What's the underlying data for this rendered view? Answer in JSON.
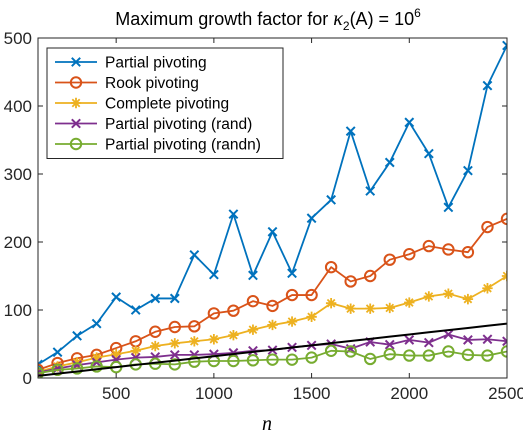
{
  "chart_data": {
    "type": "line",
    "title_prefix": "Maximum growth factor for ",
    "title_kappa": "κ",
    "title_sub": "2",
    "title_mid": "(A) = 10",
    "title_sup": "6",
    "xlabel": "n",
    "ylabel": "",
    "xlim": [
      100,
      2500
    ],
    "ylim": [
      0,
      500
    ],
    "xticks": [
      500,
      1000,
      1500,
      2000,
      2500
    ],
    "yticks": [
      0,
      100,
      200,
      300,
      400,
      500
    ],
    "grid": false,
    "legend_position": "top-left",
    "x": [
      100,
      200,
      300,
      400,
      500,
      600,
      700,
      800,
      900,
      1000,
      1100,
      1200,
      1300,
      1400,
      1500,
      1600,
      1700,
      1800,
      1900,
      2000,
      2100,
      2200,
      2300,
      2400,
      2500
    ],
    "series": [
      {
        "name": "Partial pivoting",
        "color": "#0072BD",
        "marker": "x",
        "values": [
          20,
          38,
          62,
          80,
          119,
          100,
          117,
          117,
          181,
          152,
          241,
          151,
          215,
          154,
          235,
          262,
          363,
          275,
          317,
          376,
          330,
          251,
          305,
          430,
          489
        ]
      },
      {
        "name": "Rook pivoting",
        "color": "#D95319",
        "marker": "o",
        "values": [
          12,
          22,
          29,
          34,
          44,
          54,
          68,
          75,
          76,
          95,
          99,
          113,
          106,
          122,
          122,
          163,
          142,
          150,
          174,
          182,
          194,
          189,
          185,
          222,
          234
        ]
      },
      {
        "name": "Complete pivoting",
        "color": "#EDB120",
        "marker": "*",
        "values": [
          9,
          17,
          23,
          30,
          35,
          40,
          47,
          51,
          54,
          57,
          63,
          71,
          78,
          83,
          90,
          110,
          102,
          102,
          103,
          111,
          120,
          124,
          116,
          132,
          150
        ]
      },
      {
        "name": "Partial pivoting (rand)",
        "color": "#7E2F8E",
        "marker": "x",
        "values": [
          8,
          14,
          19,
          23,
          27,
          30,
          31,
          34,
          34,
          35,
          37,
          40,
          41,
          45,
          48,
          50,
          43,
          53,
          49,
          56,
          52,
          64,
          56,
          57,
          54
        ]
      },
      {
        "name": "Partial pivoting (randn)",
        "color": "#77AC30",
        "marker": "o",
        "values": [
          7,
          12,
          14,
          17,
          16,
          20,
          21,
          20,
          24,
          25,
          25,
          26,
          27,
          27,
          30,
          40,
          39,
          28,
          35,
          33,
          33,
          39,
          34,
          33,
          39
        ]
      },
      {
        "color": "#000000",
        "marker": "none",
        "values": [
          3.2,
          6.4,
          9.6,
          12.8,
          16,
          19.2,
          22.4,
          25.6,
          28.8,
          32,
          35.2,
          38.4,
          41.6,
          44.8,
          48,
          51.2,
          54.4,
          57.6,
          60.8,
          64,
          67.2,
          70.4,
          73.6,
          76.8,
          80
        ]
      }
    ]
  }
}
